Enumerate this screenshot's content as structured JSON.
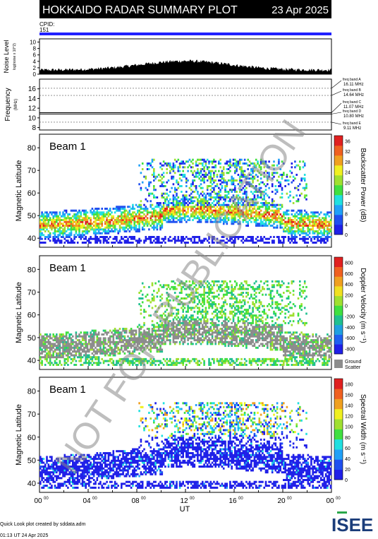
{
  "header": {
    "title": "HOKKAIDO RADAR SUMMARY PLOT",
    "date": "23 Apr 2025",
    "cpid_label": "CPID:",
    "cpid_value": "151"
  },
  "colors": {
    "header_bg": "#000000",
    "cpid_bar": "#2020ff",
    "ground_scatter": "#8c8c8c",
    "watermark": "#888888"
  },
  "noise_panel": {
    "ylabel": "Noise Level",
    "ylabel_sub": "log(noise x 10^2)",
    "yticks": [
      0,
      2,
      4,
      6,
      8,
      10
    ],
    "ylim": [
      0,
      11
    ]
  },
  "freq_panel": {
    "ylabel": "Frequency",
    "ylabel_sub": "(MHz)",
    "yticks": [
      8,
      10,
      12,
      14,
      16
    ],
    "ylim": [
      7.5,
      18
    ],
    "bands": [
      {
        "label": "freq band A",
        "freq": "16.11 MHz",
        "value": 16.11
      },
      {
        "label": "freq band B",
        "freq": "14.64 MHz",
        "value": 14.64
      },
      {
        "label": "freq band C",
        "freq": "11.07 MHz",
        "value": 11.07
      },
      {
        "label": "freq band D",
        "freq": "10.80 MHz",
        "value": 10.8
      },
      {
        "label": "freq band E",
        "freq": "9.11 MHz",
        "value": 9.11
      }
    ]
  },
  "chart_data": [
    {
      "type": "heatmap",
      "panel": "power",
      "beam_label": "Beam  1",
      "ylabel": "Magnetic Latitude",
      "yticks": [
        40,
        50,
        60,
        70,
        80
      ],
      "ylim": [
        36,
        86
      ],
      "colorbar_label": "Backscatter Power (dB)",
      "colorbar_ticks": [
        0,
        4,
        8,
        12,
        16,
        20,
        24,
        28,
        32,
        36
      ],
      "colorbar_range": [
        0,
        38
      ],
      "colors": [
        "#2020e8",
        "#2050f0",
        "#20a0f8",
        "#20e0e0",
        "#40e040",
        "#a0e030",
        "#f0f020",
        "#f0a020",
        "#f06020",
        "#e02020"
      ]
    },
    {
      "type": "heatmap",
      "panel": "velocity",
      "beam_label": "Beam  1",
      "ylabel": "Magnetic Latitude",
      "yticks": [
        40,
        50,
        60,
        70,
        80
      ],
      "ylim": [
        36,
        86
      ],
      "colorbar_label": "Doppler Velocity (m s⁻¹)",
      "colorbar_ticks": [
        800,
        600,
        400,
        200,
        0,
        -200,
        -400,
        -600,
        -800
      ],
      "colorbar_range": [
        -900,
        900
      ],
      "colors": [
        "#2020e8",
        "#2060f0",
        "#20a0e0",
        "#20c090",
        "#40e040",
        "#a0e030",
        "#f0e020",
        "#f0a020",
        "#f06020",
        "#e02020"
      ],
      "ground_label": "Ground",
      "ground_label2": "Scatter"
    },
    {
      "type": "heatmap",
      "panel": "width",
      "beam_label": "Beam  1",
      "ylabel": "Magnetic Latitude",
      "yticks": [
        40,
        50,
        60,
        70,
        80
      ],
      "ylim": [
        36,
        86
      ],
      "colorbar_label": "Spectral Width (m s⁻¹)",
      "colorbar_ticks": [
        0,
        20,
        40,
        60,
        80,
        100,
        120,
        140,
        160,
        180
      ],
      "colorbar_range": [
        0,
        190
      ],
      "colors": [
        "#2020e8",
        "#2050f0",
        "#20a0f8",
        "#20e0e0",
        "#40e040",
        "#a0e030",
        "#f0f020",
        "#f0a020",
        "#f06020",
        "#e02020"
      ]
    }
  ],
  "xaxis": {
    "label": "UT",
    "ticks": [
      "00",
      "04",
      "08",
      "12",
      "16",
      "20",
      "00"
    ],
    "tick_sup": "00",
    "xlim": [
      0,
      24
    ]
  },
  "watermark": "NOT FOR PUBLICATION",
  "footer": {
    "credit": "Quick Look plot created by sddata.adm",
    "timestamp": "01:13 UT 24 Apr 2025",
    "logo_text": "ISEE"
  }
}
